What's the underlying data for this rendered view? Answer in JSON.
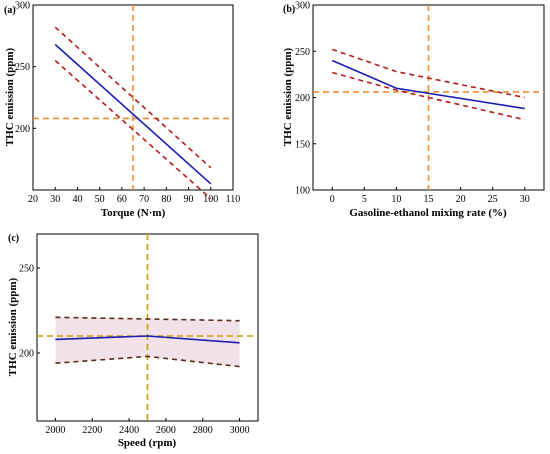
{
  "colors": {
    "mean": "#1c1cb4",
    "ci": "#b41c1c",
    "ref": "#f08c32",
    "ref_c": "#c8a000",
    "ci_c": "#5a2a1a",
    "band_c": "#f3e1ea"
  },
  "chart_data": [
    {
      "panel": "(a)",
      "type": "line",
      "xlabel": "Torque (N·m)",
      "ylabel": "THC emission (ppm)",
      "xlim": [
        20,
        110
      ],
      "ylim": [
        150,
        300
      ],
      "xticks": [
        20,
        30,
        40,
        50,
        60,
        70,
        80,
        90,
        100,
        110
      ],
      "yticks": [
        200,
        250,
        300
      ],
      "series": [
        {
          "role": "mean",
          "x": [
            30,
            100
          ],
          "y": [
            268,
            155
          ]
        },
        {
          "role": "ci_upper",
          "x": [
            30,
            100
          ],
          "y": [
            282,
            168
          ]
        },
        {
          "role": "ci_lower",
          "x": [
            30,
            100
          ],
          "y": [
            255,
            143
          ]
        }
      ],
      "ref_x": 65,
      "ref_y": 208
    },
    {
      "panel": "(b)",
      "type": "line",
      "xlabel": "Gasoline-ethanol mixing rate (%)",
      "ylabel": "THC emission (ppm)",
      "xlim": [
        -3,
        33
      ],
      "ylim": [
        100,
        300
      ],
      "xticks": [
        0,
        5,
        10,
        15,
        20,
        25,
        30
      ],
      "yticks": [
        100,
        150,
        200,
        250,
        300
      ],
      "series": [
        {
          "role": "mean",
          "x": [
            0,
            10,
            30
          ],
          "y": [
            240,
            210,
            188
          ]
        },
        {
          "role": "ci_upper",
          "x": [
            0,
            10,
            30
          ],
          "y": [
            252,
            228,
            200
          ]
        },
        {
          "role": "ci_lower",
          "x": [
            0,
            10,
            30
          ],
          "y": [
            227,
            208,
            176
          ]
        }
      ],
      "ref_x": 15,
      "ref_y": 206
    },
    {
      "panel": "(c)",
      "type": "line",
      "xlabel": "Speed (rpm)",
      "ylabel": "THC emission (ppm)",
      "xlim": [
        1900,
        3100
      ],
      "ylim": [
        160,
        270
      ],
      "xticks": [
        2000,
        2200,
        2400,
        2600,
        2800,
        3000
      ],
      "yticks": [
        200,
        250
      ],
      "series": [
        {
          "role": "mean",
          "x": [
            2000,
            2500,
            3000
          ],
          "y": [
            208,
            210,
            206
          ]
        },
        {
          "role": "ci_upper",
          "x": [
            2000,
            2500,
            3000
          ],
          "y": [
            221,
            220,
            219
          ]
        },
        {
          "role": "ci_lower",
          "x": [
            2000,
            2500,
            3000
          ],
          "y": [
            194,
            198,
            192
          ]
        }
      ],
      "ref_x": 2500,
      "ref_y": 210
    }
  ]
}
